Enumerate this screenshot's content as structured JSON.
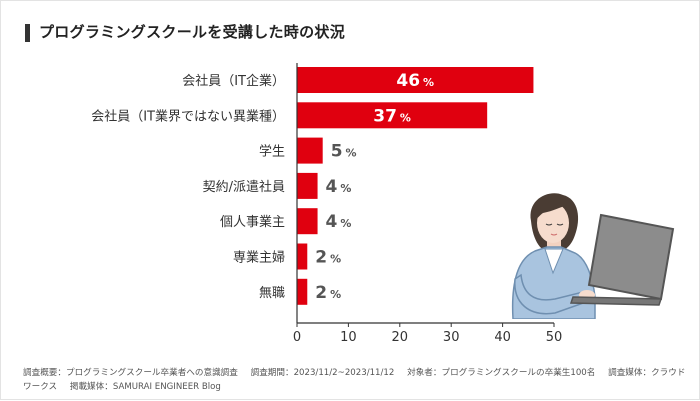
{
  "title": "プログラミングスクールを受講した時の状況",
  "colors": {
    "bar": "#e0000f",
    "text": "#333333",
    "axis": "#333333",
    "value_text_inside": "#ffffff",
    "value_text_outside": "#555555"
  },
  "footer": {
    "survey": "調査概要：プログラミングスクール卒業者への意識調査",
    "period": "調査期間：2023/11/2~2023/11/12",
    "target": "対象者：プログラミングスクールの卒業生100名",
    "medium": "調査媒体：クラウドワークス",
    "published": "掲載媒体：SAMURAI ENGINEER Blog"
  },
  "chart_data": {
    "type": "bar",
    "orientation": "horizontal",
    "title": "プログラミングスクールを受講した時の状況",
    "categories": [
      "会社員（IT企業）",
      "会社員（IT業界ではない異業種）",
      "学生",
      "契約/派遣社員",
      "個人事業主",
      "専業主婦",
      "無職"
    ],
    "values": [
      46,
      37,
      5,
      4,
      4,
      2,
      2
    ],
    "unit": "%",
    "xlim": [
      0,
      50
    ],
    "xticks": [
      0,
      10,
      20,
      30,
      40,
      50
    ],
    "xlabel": "",
    "ylabel": "",
    "grid": false,
    "label_inside_threshold": 20
  },
  "illustration": {
    "name": "woman-using-laptop"
  }
}
